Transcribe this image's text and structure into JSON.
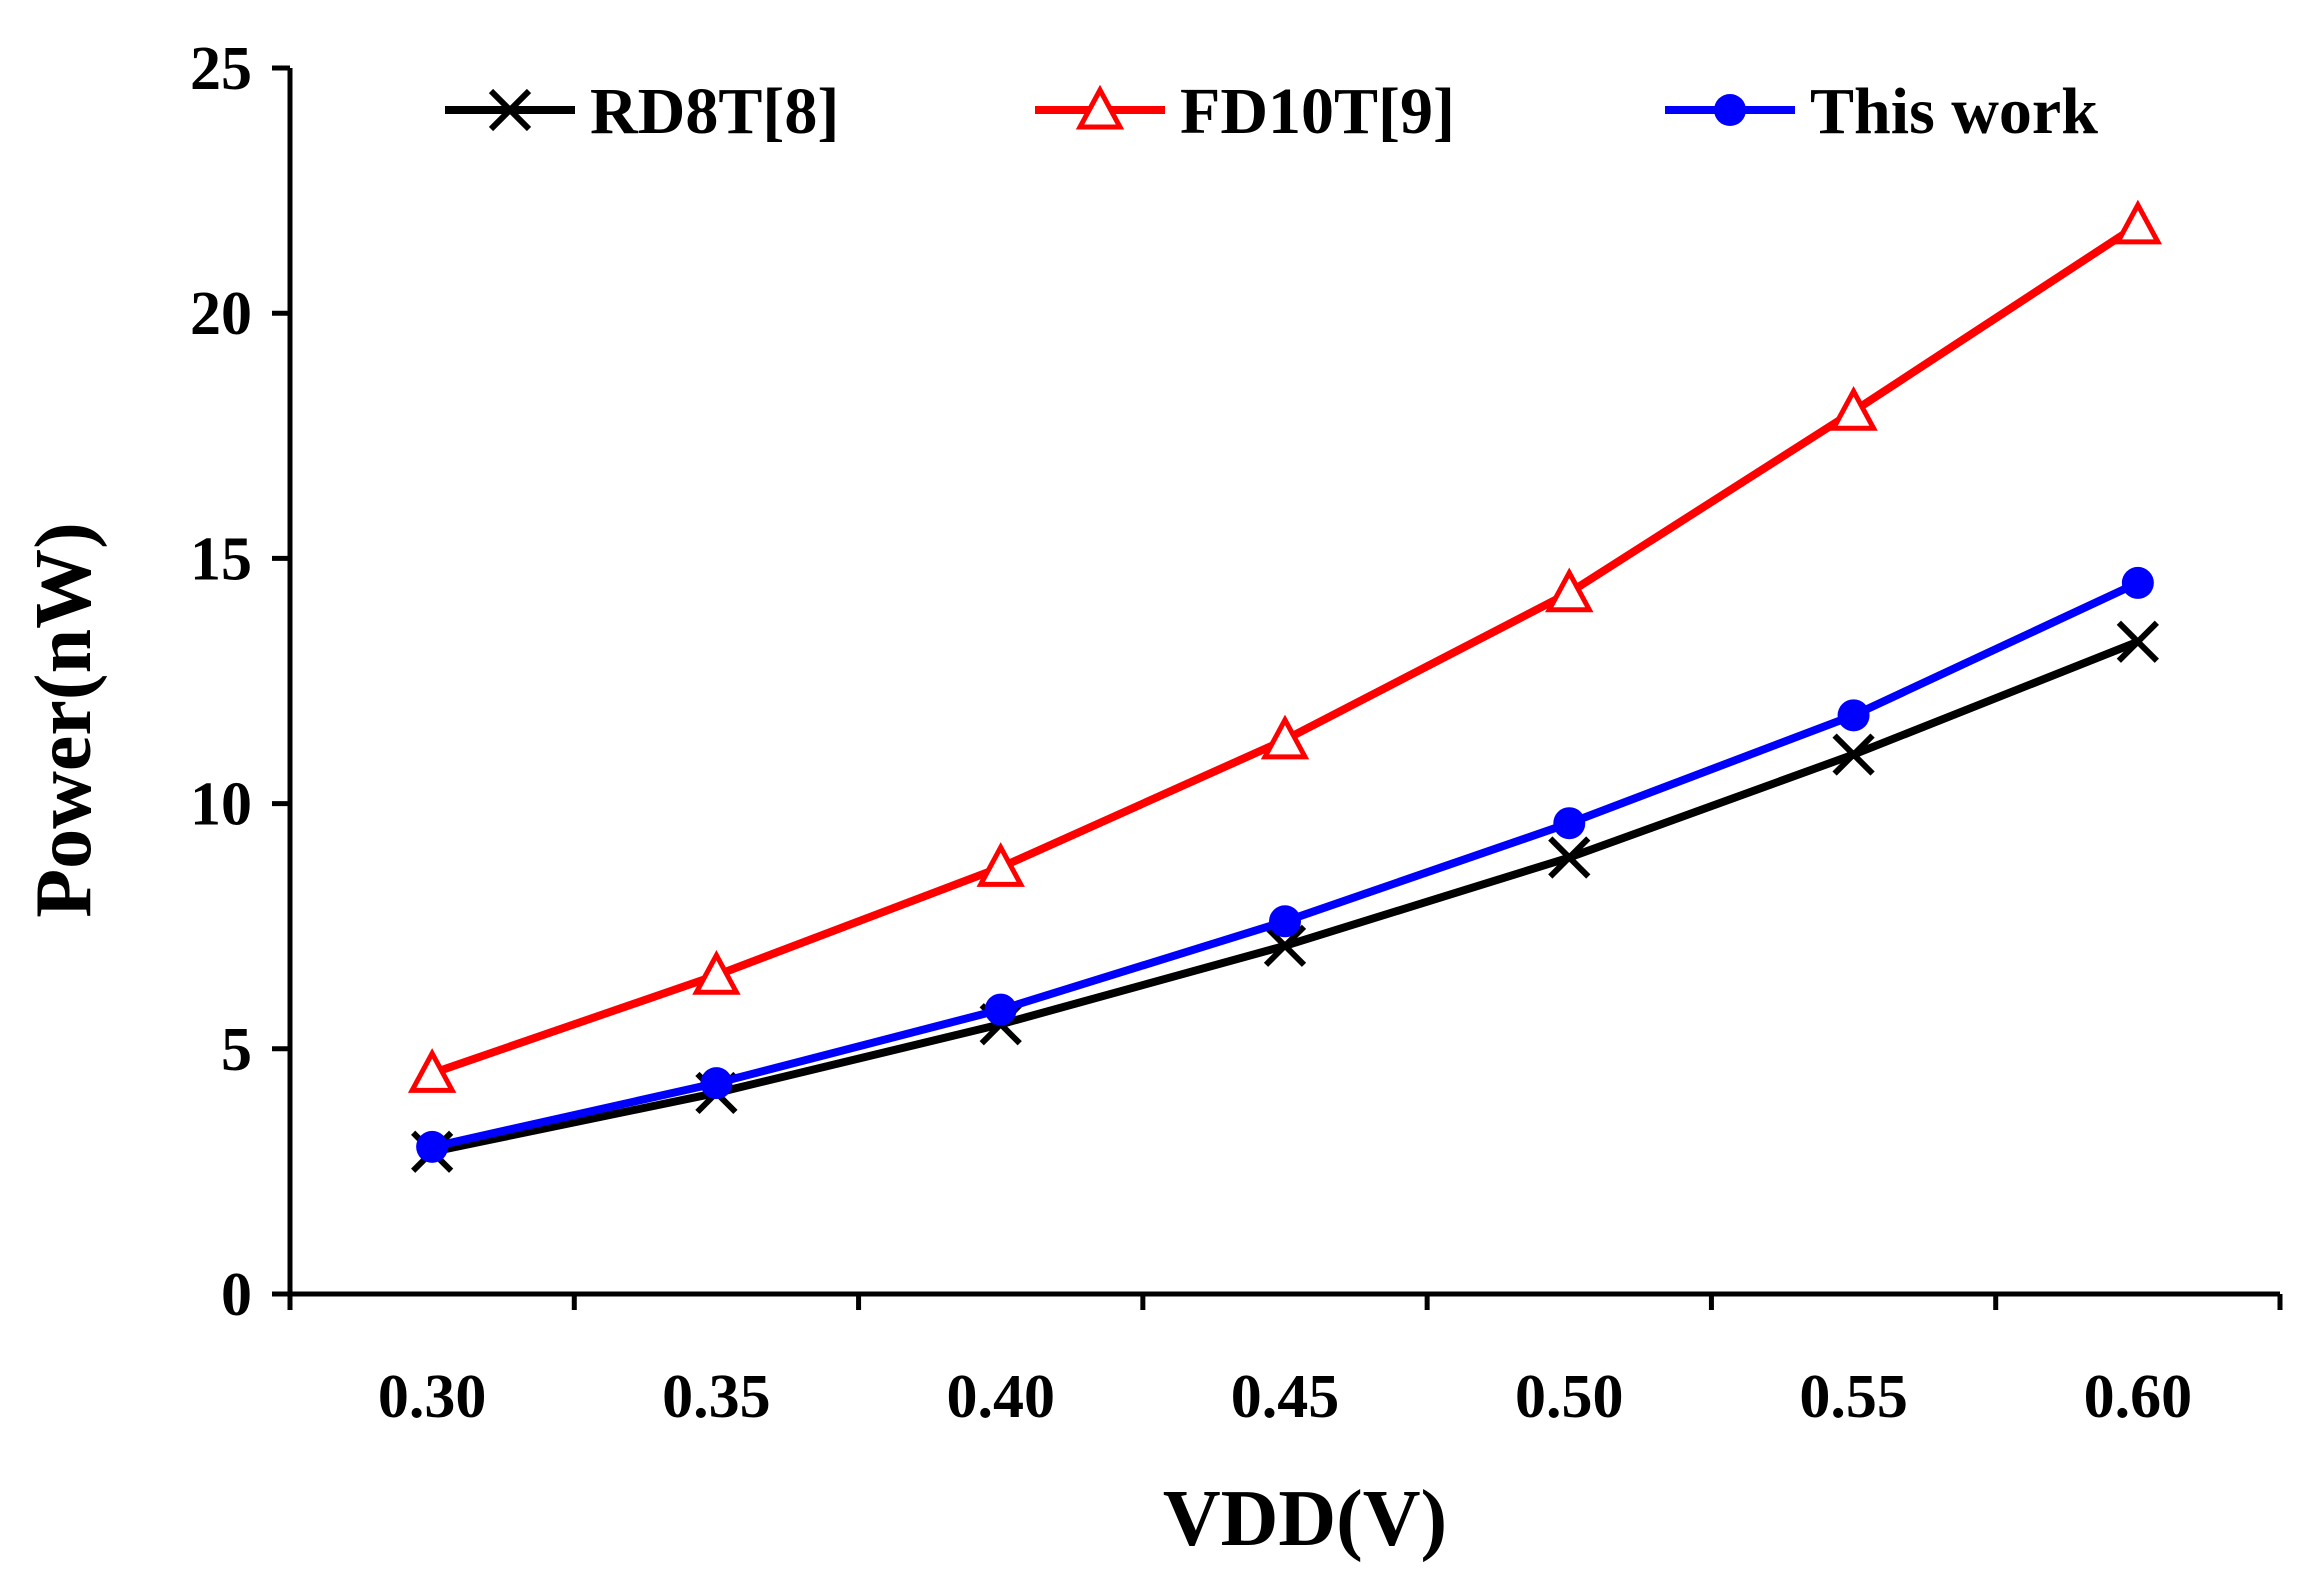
{
  "chart_data": {
    "type": "line",
    "title": "",
    "xlabel": "VDD(V)",
    "ylabel": "Power(nW)",
    "categories": [
      "0.30",
      "0.35",
      "0.40",
      "0.45",
      "0.50",
      "0.55",
      "0.60"
    ],
    "ylim": [
      0,
      25
    ],
    "yticks": [
      "0",
      "5",
      "10",
      "15",
      "20",
      "25"
    ],
    "grid": false,
    "legend_position": "top",
    "series": [
      {
        "name": "RD8T[8]",
        "color": "#000000",
        "marker": "x",
        "values": [
          2.9,
          4.1,
          5.5,
          7.1,
          8.9,
          11.0,
          13.3
        ]
      },
      {
        "name": "FD10T[9]",
        "color": "#ff0000",
        "marker": "triangle-open",
        "values": [
          4.5,
          6.5,
          8.7,
          11.3,
          14.3,
          18.0,
          21.8
        ]
      },
      {
        "name": "This work",
        "color": "#0000ff",
        "marker": "circle",
        "values": [
          3.0,
          4.3,
          5.8,
          7.6,
          9.6,
          11.8,
          14.5
        ]
      }
    ]
  }
}
